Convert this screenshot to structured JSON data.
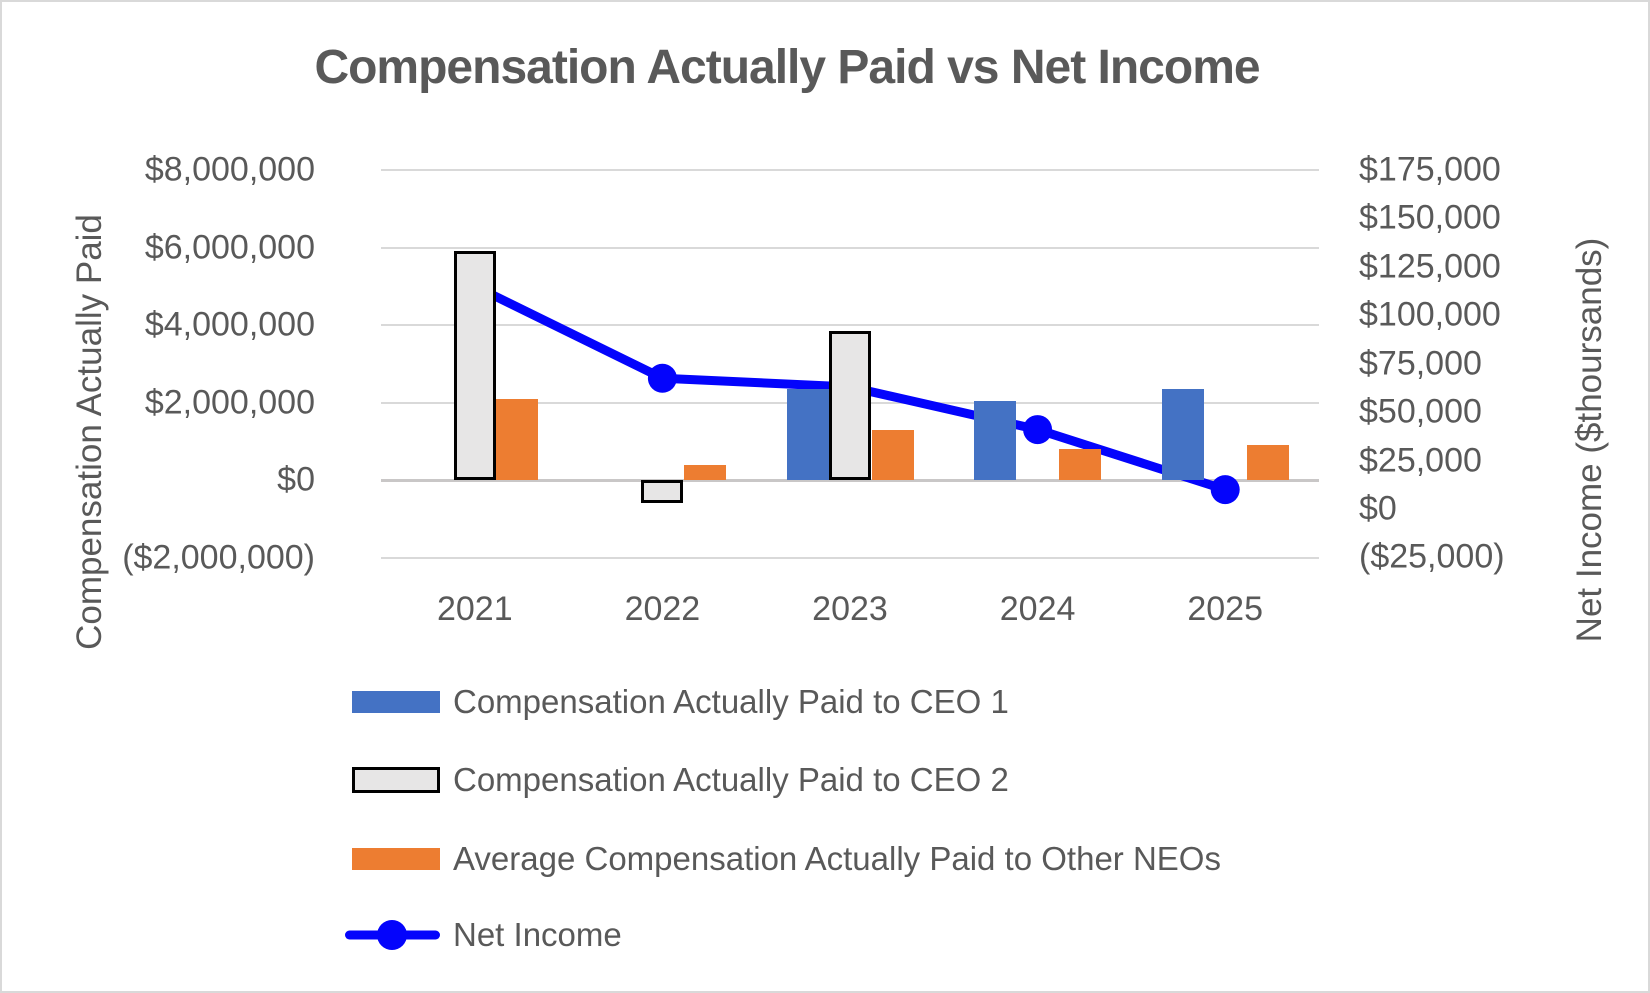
{
  "title": "Compensation Actually Paid vs Net Income",
  "left_axis": {
    "title": "Compensation Actually Paid",
    "tick_labels": [
      "$8,000,000",
      "$6,000,000",
      "$4,000,000",
      "$2,000,000",
      "$0",
      "($2,000,000)"
    ],
    "tick_values": [
      8000000,
      6000000,
      4000000,
      2000000,
      0,
      -2000000
    ]
  },
  "right_axis": {
    "title": "Net Income ($thoursands)",
    "tick_labels": [
      "$175,000",
      "$150,000",
      "$125,000",
      "$100,000",
      "$75,000",
      "$50,000",
      "$25,000",
      "$0",
      "($25,000)"
    ],
    "tick_values": [
      175000,
      150000,
      125000,
      100000,
      75000,
      50000,
      25000,
      0,
      -25000
    ]
  },
  "chart_data": {
    "type": "combo",
    "categories": [
      "2021",
      "2022",
      "2023",
      "2024",
      "2025"
    ],
    "series": [
      {
        "name": "Compensation Actually Paid to CEO 1",
        "type": "bar",
        "axis": "left",
        "color": "#4472C4",
        "values": [
          null,
          null,
          2350000,
          2050000,
          2350000
        ]
      },
      {
        "name": "Compensation Actually Paid to CEO 2",
        "type": "bar",
        "axis": "left",
        "color": "#E7E6E6",
        "border_color": "#000000",
        "values": [
          5900000,
          -600000,
          3850000,
          null,
          null
        ]
      },
      {
        "name": "Average Compensation Actually Paid to Other NEOs",
        "type": "bar",
        "axis": "left",
        "color": "#ED7D31",
        "values": [
          2100000,
          400000,
          1300000,
          800000,
          900000
        ]
      },
      {
        "name": "Net Income",
        "type": "line",
        "axis": "right",
        "color": "#0404FC",
        "values": [
          115000,
          67500,
          63000,
          41000,
          10000
        ]
      }
    ],
    "title": "Compensation Actually Paid vs Net Income",
    "xlabel": "",
    "ylabel_left": "Compensation Actually Paid",
    "ylabel_right": "Net Income ($thoursands)",
    "left_ylim": [
      -2000000,
      8000000
    ],
    "right_ylim": [
      -25000,
      175000
    ],
    "grid": true,
    "legend_position": "bottom-left",
    "gridline_color": "#D9D9D9",
    "zero_line_color": "#C9C7C7",
    "text_color": "#595959"
  },
  "legend": {
    "items": [
      {
        "swatch": "bar-blue"
      },
      {
        "swatch": "bar-gray-outlined"
      },
      {
        "swatch": "bar-orange"
      },
      {
        "swatch": "line-marker"
      }
    ]
  }
}
